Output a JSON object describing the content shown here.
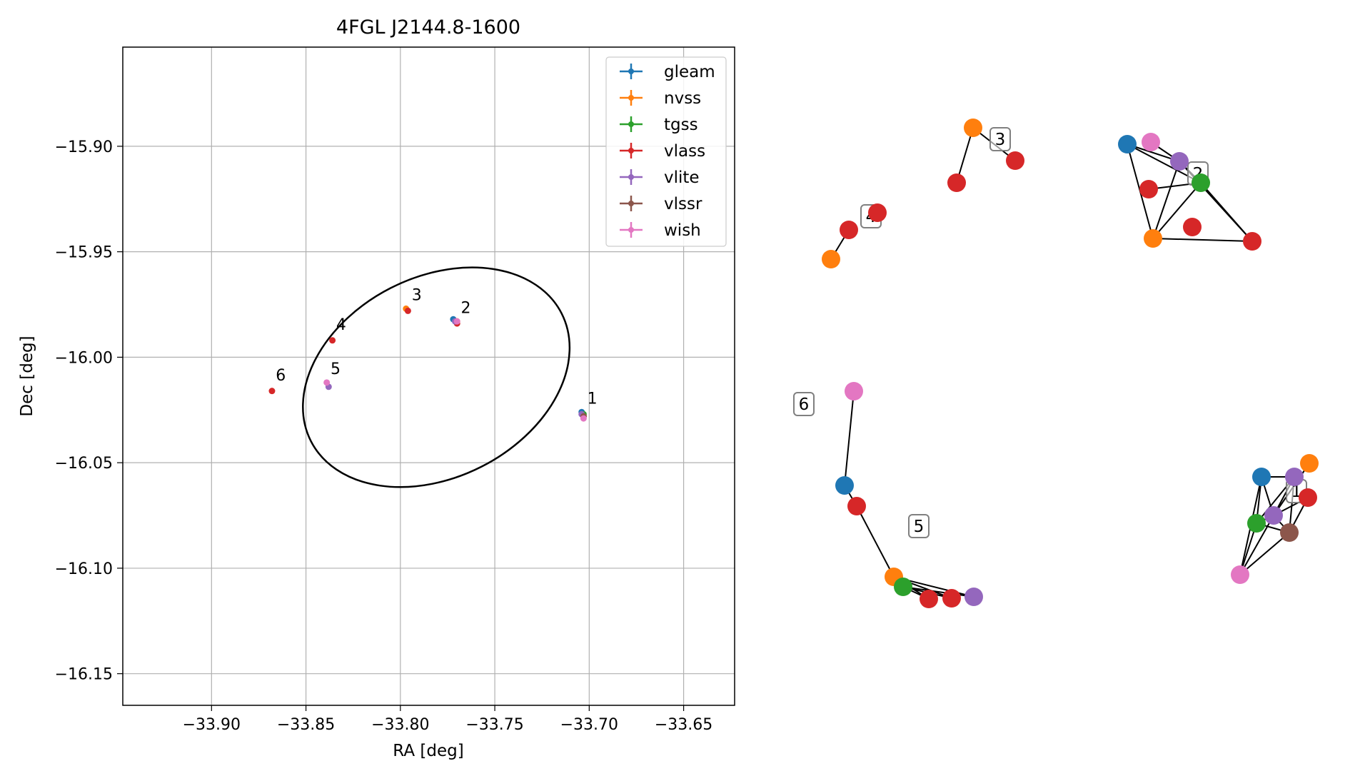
{
  "chart_data": [
    {
      "type": "scatter",
      "title": "4FGL J2144.8-1600",
      "xlabel": "RA [deg]",
      "ylabel": "Dec [deg]",
      "xlim": [
        -33.947,
        -33.623
      ],
      "ylim": [
        -16.165,
        -15.853
      ],
      "xticks": [
        -33.9,
        -33.85,
        -33.8,
        -33.75,
        -33.7,
        -33.65
      ],
      "xtick_labels": [
        "−33.90",
        "−33.85",
        "−33.80",
        "−33.75",
        "−33.70",
        "−33.65"
      ],
      "yticks": [
        -15.9,
        -15.95,
        -16.0,
        -16.05,
        -16.1,
        -16.15
      ],
      "ytick_labels": [
        "−15.90",
        "−15.95",
        "−16.00",
        "−16.05",
        "−16.10",
        "−16.15"
      ],
      "grid": true,
      "legend_position": "top-right",
      "series": [
        {
          "name": "gleam",
          "color": "#1f77b4",
          "x": [
            -33.704,
            -33.772
          ],
          "y": [
            -16.026,
            -15.982
          ]
        },
        {
          "name": "nvss",
          "color": "#ff7f0e",
          "x": [
            -33.703,
            -33.797,
            -33.77
          ],
          "y": [
            -16.028,
            -15.977,
            -15.983
          ]
        },
        {
          "name": "tgss",
          "color": "#2ca02c",
          "x": [
            -33.703
          ],
          "y": [
            -16.027
          ]
        },
        {
          "name": "vlass",
          "color": "#d62728",
          "x": [
            -33.703,
            -33.796,
            -33.77,
            -33.836,
            -33.868
          ],
          "y": [
            -16.028,
            -15.978,
            -15.984,
            -15.992,
            -16.016
          ]
        },
        {
          "name": "vlite",
          "color": "#9467bd",
          "x": [
            -33.704,
            -33.838,
            -33.771
          ],
          "y": [
            -16.027,
            -16.014,
            -15.983
          ]
        },
        {
          "name": "vlssr",
          "color": "#8c564b",
          "x": [
            -33.703
          ],
          "y": [
            -16.028
          ]
        },
        {
          "name": "wish",
          "color": "#e377c2",
          "x": [
            -33.703,
            -33.839,
            -33.77
          ],
          "y": [
            -16.029,
            -16.012,
            -15.983
          ]
        }
      ],
      "ellipse": {
        "center_ra": -33.781,
        "center_dec": -16.0095,
        "semi_axes": [
          0.0745,
          0.0475
        ],
        "angle_deg": -27
      },
      "annotations": [
        {
          "text": "1",
          "x": -33.701,
          "y": -16.022
        },
        {
          "text": "2",
          "x": -33.768,
          "y": -15.979
        },
        {
          "text": "3",
          "x": -33.794,
          "y": -15.973
        },
        {
          "text": "4",
          "x": -33.834,
          "y": -15.987
        },
        {
          "text": "5",
          "x": -33.837,
          "y": -16.008
        },
        {
          "text": "6",
          "x": -33.866,
          "y": -16.011
        }
      ]
    },
    {
      "type": "network",
      "nodes": [
        {
          "cat": "vlass",
          "c": "#d62728"
        },
        {
          "cat": "nvss",
          "c": "#ff7f0e"
        },
        {
          "cat": "vlass",
          "c": "#d62728"
        },
        {
          "cat": "vlass",
          "c": "#d62728"
        },
        {
          "cat": "vlass",
          "c": "#d62728"
        },
        {
          "cat": "nvss",
          "c": "#ff7f0e"
        },
        {
          "cat": "gleam",
          "c": "#1f77b4"
        },
        {
          "cat": "wish",
          "c": "#e377c2"
        },
        {
          "cat": "vlite",
          "c": "#9467bd"
        },
        {
          "cat": "tgss",
          "c": "#2ca02c"
        },
        {
          "cat": "vlass",
          "c": "#d62728"
        },
        {
          "cat": "nvss",
          "c": "#ff7f0e"
        },
        {
          "cat": "vlass",
          "c": "#d62728"
        },
        {
          "cat": "vlass",
          "c": "#d62728"
        },
        {
          "cat": "wish",
          "c": "#e377c2"
        },
        {
          "cat": "gleam",
          "c": "#1f77b4"
        },
        {
          "cat": "vlass",
          "c": "#d62728"
        },
        {
          "cat": "nvss",
          "c": "#ff7f0e"
        },
        {
          "cat": "tgss",
          "c": "#2ca02c"
        },
        {
          "cat": "vlass",
          "c": "#d62728"
        },
        {
          "cat": "vlass",
          "c": "#d62728"
        },
        {
          "cat": "vlite",
          "c": "#9467bd"
        },
        {
          "cat": "gleam",
          "c": "#1f77b4"
        },
        {
          "cat": "vlite",
          "c": "#9467bd"
        },
        {
          "cat": "nvss",
          "c": "#ff7f0e"
        },
        {
          "cat": "vlass",
          "c": "#d62728"
        },
        {
          "cat": "tgss",
          "c": "#2ca02c"
        },
        {
          "cat": "vlite",
          "c": "#9467bd"
        },
        {
          "cat": "vlssr",
          "c": "#8c564b"
        },
        {
          "cat": "wish",
          "c": "#e377c2"
        }
      ],
      "edges": [
        [
          0,
          1
        ],
        [
          1,
          2
        ],
        [
          4,
          5
        ],
        [
          6,
          8
        ],
        [
          6,
          9
        ],
        [
          7,
          8
        ],
        [
          8,
          9
        ],
        [
          8,
          11
        ],
        [
          8,
          12
        ],
        [
          9,
          11
        ],
        [
          9,
          12
        ],
        [
          9,
          13
        ],
        [
          6,
          11
        ],
        [
          11,
          12
        ],
        [
          14,
          15
        ],
        [
          15,
          16
        ],
        [
          16,
          17
        ],
        [
          17,
          18
        ],
        [
          17,
          19
        ],
        [
          17,
          20
        ],
        [
          18,
          19
        ],
        [
          18,
          20
        ],
        [
          17,
          21
        ],
        [
          18,
          21
        ],
        [
          22,
          23
        ],
        [
          22,
          26
        ],
        [
          22,
          27
        ],
        [
          23,
          26
        ],
        [
          23,
          27
        ],
        [
          23,
          28
        ],
        [
          26,
          27
        ],
        [
          26,
          28
        ],
        [
          27,
          28
        ],
        [
          29,
          26
        ],
        [
          29,
          27
        ],
        [
          29,
          28
        ],
        [
          29,
          22
        ],
        [
          27,
          25
        ],
        [
          28,
          25
        ],
        [
          24,
          27
        ]
      ],
      "labels": [
        {
          "text": "1"
        },
        {
          "text": "2"
        },
        {
          "text": "3"
        },
        {
          "text": "4"
        },
        {
          "text": "5"
        },
        {
          "text": "6"
        }
      ]
    }
  ]
}
